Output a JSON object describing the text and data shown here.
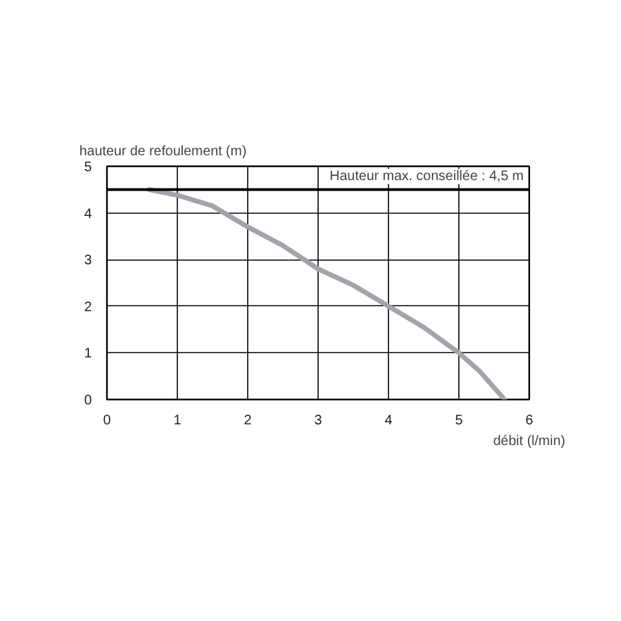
{
  "chart_data": {
    "type": "line",
    "xlabel": "débit (l/min)",
    "ylabel": "hauteur de refoulement (m)",
    "x": [
      0.6,
      1.0,
      1.5,
      2.0,
      2.5,
      3.0,
      3.5,
      4.0,
      4.5,
      5.0,
      5.3,
      5.65
    ],
    "series": [
      {
        "color": "#a3a3ab",
        "values": [
          4.5,
          4.38,
          4.15,
          3.7,
          3.3,
          2.8,
          2.45,
          2.0,
          1.55,
          1.0,
          0.6,
          0
        ]
      }
    ],
    "xlim": [
      0,
      6
    ],
    "ylim": [
      0,
      5
    ],
    "xticks": [
      0,
      1,
      2,
      3,
      4,
      5,
      6
    ],
    "yticks": [
      0,
      1,
      2,
      3,
      4,
      5
    ],
    "grid": true,
    "ref_lines": [
      {
        "axis": "y",
        "value": 4.5,
        "label": "Hauteur max. conseillée : 4,5 m",
        "color": "#000000"
      }
    ]
  }
}
